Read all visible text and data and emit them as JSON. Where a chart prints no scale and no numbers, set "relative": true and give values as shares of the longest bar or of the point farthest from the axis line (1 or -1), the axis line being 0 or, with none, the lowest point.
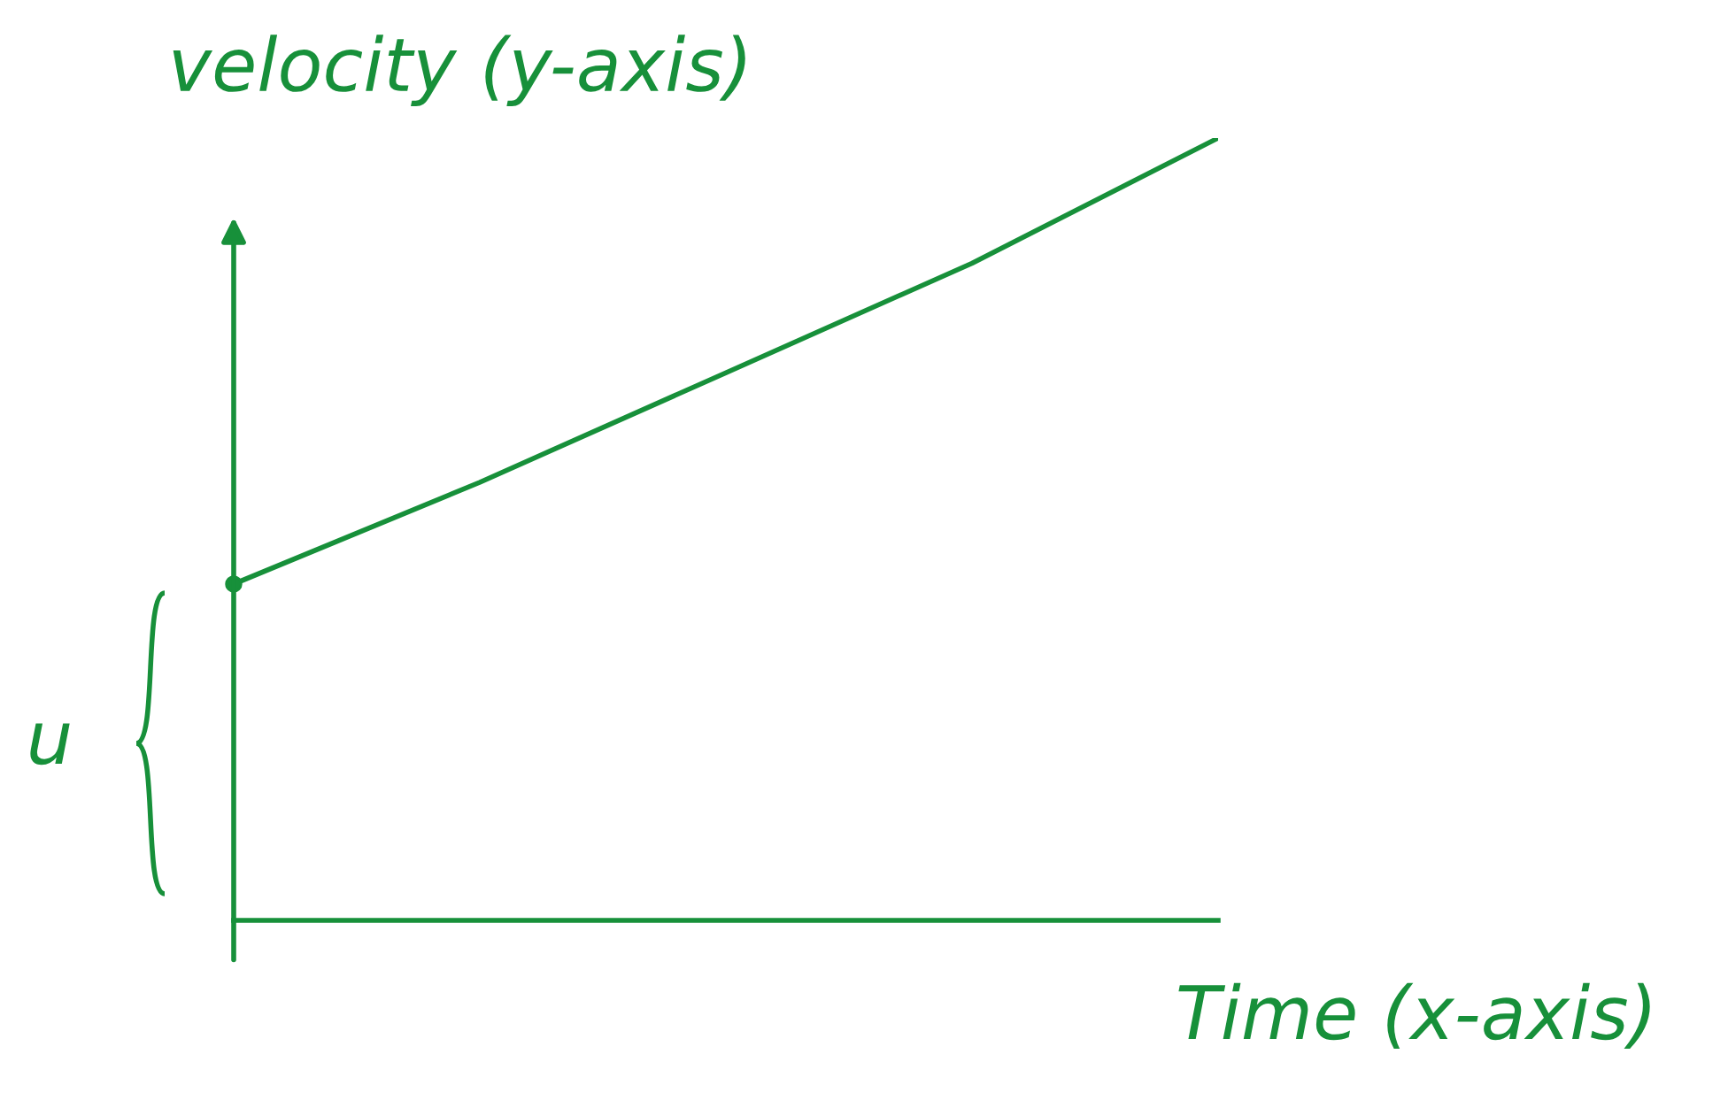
{
  "chart_data": {
    "type": "line",
    "relative": true,
    "xlabel": "Time (x-axis)",
    "ylabel": "velocity (y-axis)",
    "categories": [
      null,
      null,
      null,
      null,
      null
    ],
    "series": [
      {
        "color": "#17903a",
        "values": [
          0.43,
          0.56,
          0.7,
          0.84,
          1.0
        ]
      }
    ],
    "annotations": [
      "u"
    ],
    "marker": "none",
    "line_style": "solid"
  }
}
